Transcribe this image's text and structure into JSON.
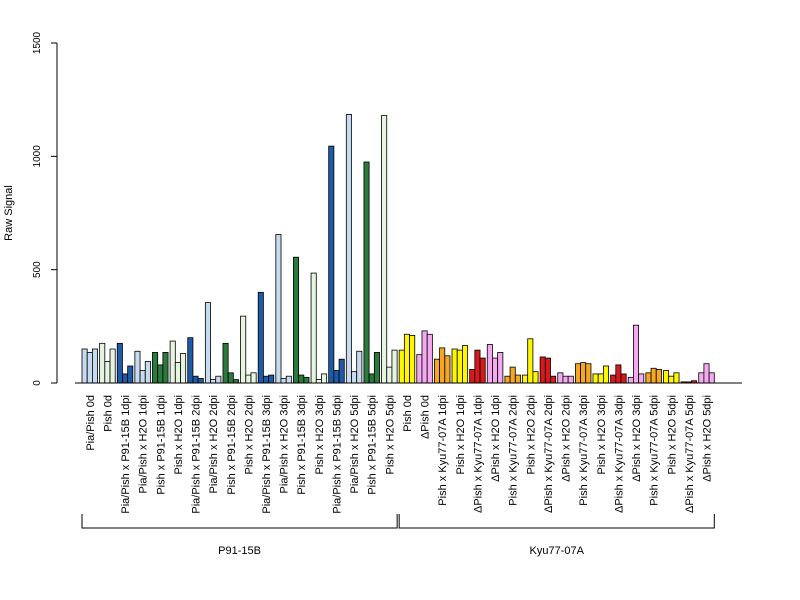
{
  "chart_data": {
    "type": "bar",
    "ylabel": "Raw Signal",
    "ylim": [
      0,
      1500
    ],
    "yticks": [
      0,
      500,
      1000,
      1500
    ],
    "grid": false,
    "legend": "none",
    "categories": [
      {
        "label": "Pia/Pish 0d",
        "color": "#C6DBEF",
        "values": [
          150,
          135,
          150
        ]
      },
      {
        "label": "Pish 0d",
        "color": "#E5F5E0",
        "values": [
          175,
          95,
          150
        ]
      },
      {
        "label": "Pia/Pish x P91-15B 1dpi",
        "color": "#1F5AA6",
        "values": [
          175,
          40,
          75
        ]
      },
      {
        "label": "Pia/Pish x H2O 1dpi",
        "color": "#C6DBEF",
        "values": [
          140,
          55,
          95
        ]
      },
      {
        "label": "Pish x P91-15B 1dpi",
        "color": "#2A7A3B",
        "values": [
          135,
          80,
          135
        ]
      },
      {
        "label": "Pish x H2O 1dpi",
        "color": "#E5F5E0",
        "values": [
          185,
          90,
          130
        ]
      },
      {
        "label": "Pia/Pish x P91-15B 2dpi",
        "color": "#1F5AA6",
        "values": [
          200,
          30,
          20
        ]
      },
      {
        "label": "Pia/Pish x H2O 2dpi",
        "color": "#C6DBEF",
        "values": [
          355,
          15,
          30
        ]
      },
      {
        "label": "Pish x P91-15B 2dpi",
        "color": "#2A7A3B",
        "values": [
          175,
          45,
          15
        ]
      },
      {
        "label": "Pish x H2O 2dpi",
        "color": "#E5F5E0",
        "values": [
          295,
          35,
          45
        ]
      },
      {
        "label": "Pia/Pish x P91-15B 3dpi",
        "color": "#1F5AA6",
        "values": [
          400,
          30,
          35
        ]
      },
      {
        "label": "Pia/Pish x H2O 3dpi",
        "color": "#C6DBEF",
        "values": [
          655,
          20,
          30
        ]
      },
      {
        "label": "Pish x P91-15B 3dpi",
        "color": "#2A7A3B",
        "values": [
          555,
          35,
          25
        ]
      },
      {
        "label": "Pish x H2O 3dpi",
        "color": "#E5F5E0",
        "values": [
          485,
          15,
          40
        ]
      },
      {
        "label": "Pia/Pish x P91-15B 5dpi",
        "color": "#1F5AA6",
        "values": [
          1045,
          55,
          105
        ]
      },
      {
        "label": "Pia/Pish x H2O 5dpi",
        "color": "#C6DBEF",
        "values": [
          1185,
          50,
          140
        ]
      },
      {
        "label": "Pish x P91-15B 5dpi",
        "color": "#2A7A3B",
        "values": [
          975,
          40,
          135
        ]
      },
      {
        "label": "Pish x H2O 5dpi",
        "color": "#E5F5E0",
        "values": [
          1180,
          70,
          145
        ]
      },
      {
        "label": "Pish 0d",
        "color": "#FFF700",
        "values": [
          145,
          215,
          210
        ]
      },
      {
        "label": "ΔPish 0d",
        "color": "#F5A9F0",
        "values": [
          125,
          230,
          215
        ]
      },
      {
        "label": "Pish x Kyu77-07A 1dpi",
        "color": "#F5A623",
        "values": [
          105,
          155,
          120
        ]
      },
      {
        "label": "Pish x H2O 1dpi",
        "color": "#FFF700",
        "values": [
          150,
          145,
          165
        ]
      },
      {
        "label": "ΔPish x Kyu77-07A 1dpi",
        "color": "#D7191C",
        "values": [
          60,
          145,
          110
        ]
      },
      {
        "label": "ΔPish x H2O 1dpi",
        "color": "#F5A9F0",
        "values": [
          170,
          110,
          135
        ]
      },
      {
        "label": "Pish x Kyu77-07A 2dpi",
        "color": "#F5A623",
        "values": [
          30,
          70,
          35
        ]
      },
      {
        "label": "Pish x H2O 2dpi",
        "color": "#FFF700",
        "values": [
          35,
          195,
          50
        ]
      },
      {
        "label": "ΔPish x Kyu77-07A 2dpi",
        "color": "#D7191C",
        "values": [
          115,
          110,
          30
        ]
      },
      {
        "label": "ΔPish x H2O 2dpi",
        "color": "#F5A9F0",
        "values": [
          45,
          30,
          30
        ]
      },
      {
        "label": "Pish x Kyu77-07A 3dpi",
        "color": "#F5A623",
        "values": [
          85,
          90,
          85
        ]
      },
      {
        "label": "Pish x H2O 3dpi",
        "color": "#FFF700",
        "values": [
          40,
          40,
          75
        ]
      },
      {
        "label": "ΔPish x Kyu77-07A 3dpi",
        "color": "#D7191C",
        "values": [
          35,
          80,
          40
        ]
      },
      {
        "label": "ΔPish x H2O 3dpi",
        "color": "#F5A9F0",
        "values": [
          25,
          255,
          40
        ]
      },
      {
        "label": "Pish x Kyu77-07A 5dpi",
        "color": "#F5A623",
        "values": [
          45,
          65,
          60
        ]
      },
      {
        "label": "Pish x H2O 5dpi",
        "color": "#FFF700",
        "values": [
          55,
          30,
          45
        ]
      },
      {
        "label": "ΔPish x Kyu77-07A 5dpi",
        "color": "#D7191C",
        "values": [
          5,
          5,
          10
        ]
      },
      {
        "label": "ΔPish x H2O 5dpi",
        "color": "#F5A9F0",
        "values": [
          45,
          85,
          45
        ]
      }
    ],
    "groups": [
      {
        "label": "P91-15B",
        "from": 0,
        "to": 17
      },
      {
        "label": "Kyu77-07A",
        "from": 18,
        "to": 35
      }
    ]
  }
}
